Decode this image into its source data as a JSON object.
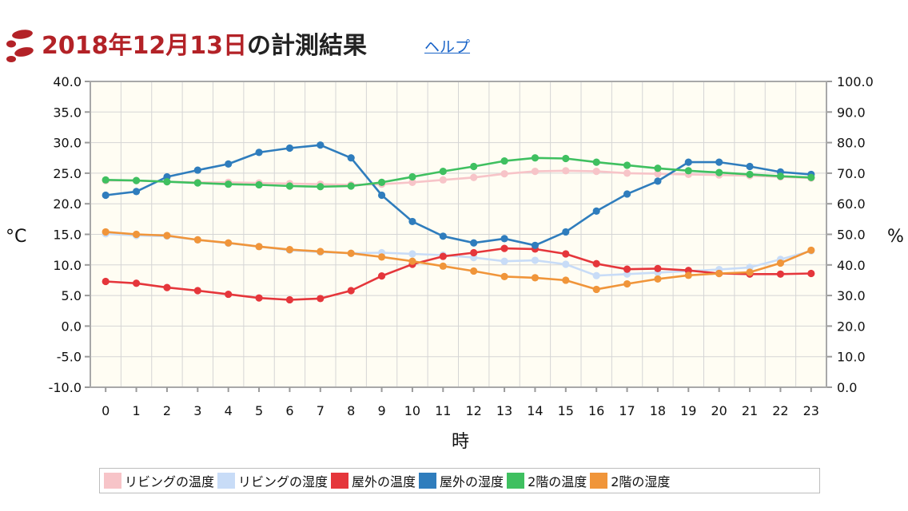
{
  "header": {
    "title_date": "2018年12月13日",
    "title_rest": "の計測結果",
    "help_link": "ヘルプ"
  },
  "colors": {
    "title_red": "#b32227",
    "plot_background": "#fffdf3",
    "grid": "#d5d5d5",
    "link": "#1a64c8"
  },
  "chart_data": {
    "type": "line",
    "x": [
      0,
      1,
      2,
      3,
      4,
      5,
      6,
      7,
      8,
      9,
      10,
      11,
      12,
      13,
      14,
      15,
      16,
      17,
      18,
      19,
      20,
      21,
      22,
      23
    ],
    "xlabel": "時",
    "ylabel_left": "°C",
    "ylabel_right": "%",
    "ylim_left": [
      -10,
      40
    ],
    "ylim_right": [
      0,
      100
    ],
    "yticks_left": [
      "40.0",
      "35.0",
      "30.0",
      "25.0",
      "20.0",
      "15.0",
      "10.0",
      "5.0",
      "0.0",
      "-5.0",
      "-10.0"
    ],
    "yticks_right": [
      "100.0",
      "90.0",
      "80.0",
      "70.0",
      "60.0",
      "50.0",
      "40.0",
      "30.0",
      "20.0",
      "10.0",
      "0.0"
    ],
    "grid": true,
    "legend_position": "bottom",
    "series": [
      {
        "name": "リビングの温度",
        "axis": "left",
        "color": "#f7c4c8",
        "values": [
          23.8,
          23.8,
          23.6,
          23.5,
          23.5,
          23.4,
          23.3,
          23.2,
          23.1,
          23.2,
          23.5,
          23.9,
          24.3,
          24.9,
          25.3,
          25.4,
          25.3,
          25.0,
          24.9,
          24.8,
          24.7,
          24.6,
          24.4,
          24.2
        ]
      },
      {
        "name": "リビングの湿度",
        "axis": "right",
        "color": "#c8dcf7",
        "values": [
          50.2,
          49.6,
          49.4,
          48.2,
          47.1,
          46.0,
          44.8,
          44.2,
          43.8,
          44.0,
          43.6,
          43.2,
          42.4,
          41.2,
          41.5,
          40.2,
          36.5,
          37.0,
          37.5,
          38.0,
          38.5,
          39.2,
          41.8,
          44.6
        ]
      },
      {
        "name": "屋外の温度",
        "axis": "left",
        "color": "#e5363b",
        "values": [
          7.3,
          7.0,
          6.3,
          5.8,
          5.2,
          4.6,
          4.3,
          4.5,
          5.8,
          8.2,
          10.1,
          11.4,
          12.0,
          12.7,
          12.6,
          11.8,
          10.2,
          9.3,
          9.4,
          9.1,
          8.6,
          8.5,
          8.5,
          8.6
        ]
      },
      {
        "name": "屋外の湿度",
        "axis": "right",
        "color": "#2f7dbd",
        "values": [
          62.8,
          64.0,
          68.8,
          71.0,
          73.0,
          76.8,
          78.2,
          79.2,
          75.0,
          62.8,
          54.2,
          49.4,
          47.2,
          48.6,
          46.4,
          50.8,
          57.6,
          63.2,
          67.4,
          73.6,
          73.6,
          72.2,
          70.4,
          69.6
        ]
      },
      {
        "name": "2階の温度",
        "axis": "left",
        "color": "#3fc060",
        "values": [
          23.9,
          23.8,
          23.6,
          23.4,
          23.2,
          23.1,
          22.9,
          22.8,
          22.9,
          23.5,
          24.4,
          25.3,
          26.1,
          27.0,
          27.5,
          27.4,
          26.8,
          26.3,
          25.8,
          25.4,
          25.1,
          24.8,
          24.5,
          24.3
        ]
      },
      {
        "name": "2階の湿度",
        "axis": "right",
        "color": "#f0953a",
        "values": [
          50.8,
          50.0,
          49.6,
          48.2,
          47.2,
          46.0,
          45.0,
          44.4,
          43.8,
          42.6,
          41.2,
          39.6,
          38.0,
          36.2,
          35.8,
          35.0,
          32.0,
          33.8,
          35.4,
          36.6,
          37.2,
          37.6,
          40.6,
          44.8
        ]
      }
    ]
  }
}
